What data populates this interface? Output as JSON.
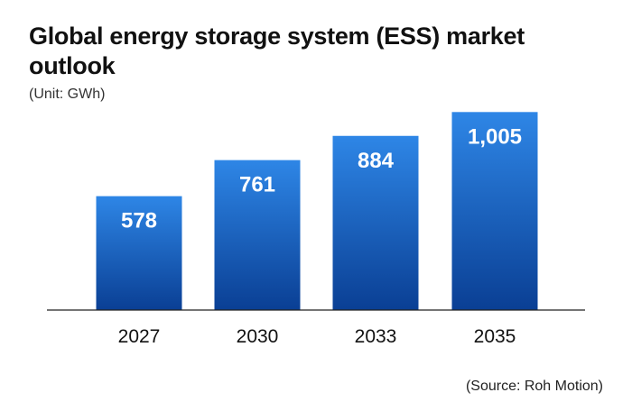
{
  "title": "Global energy storage system (ESS) market outlook",
  "unit": "(Unit: GWh)",
  "source": "(Source: Roh Motion)",
  "colors": {
    "bar_top": "#2e86e6",
    "bar_bottom": "#0a3f94",
    "axis": "#222222",
    "value_label": "#ffffff",
    "tick_label": "#111111"
  },
  "chart_data": {
    "type": "bar",
    "title": "Global energy storage system (ESS) market outlook",
    "ylabel": "(Unit: GWh)",
    "xlabel": "",
    "categories": [
      "2027",
      "2030",
      "2033",
      "2035"
    ],
    "values": [
      578,
      761,
      884,
      1005
    ],
    "value_labels": [
      "578",
      "761",
      "884",
      "1,005"
    ],
    "ylim": [
      0,
      1100
    ],
    "grid": false,
    "legend": "none"
  }
}
